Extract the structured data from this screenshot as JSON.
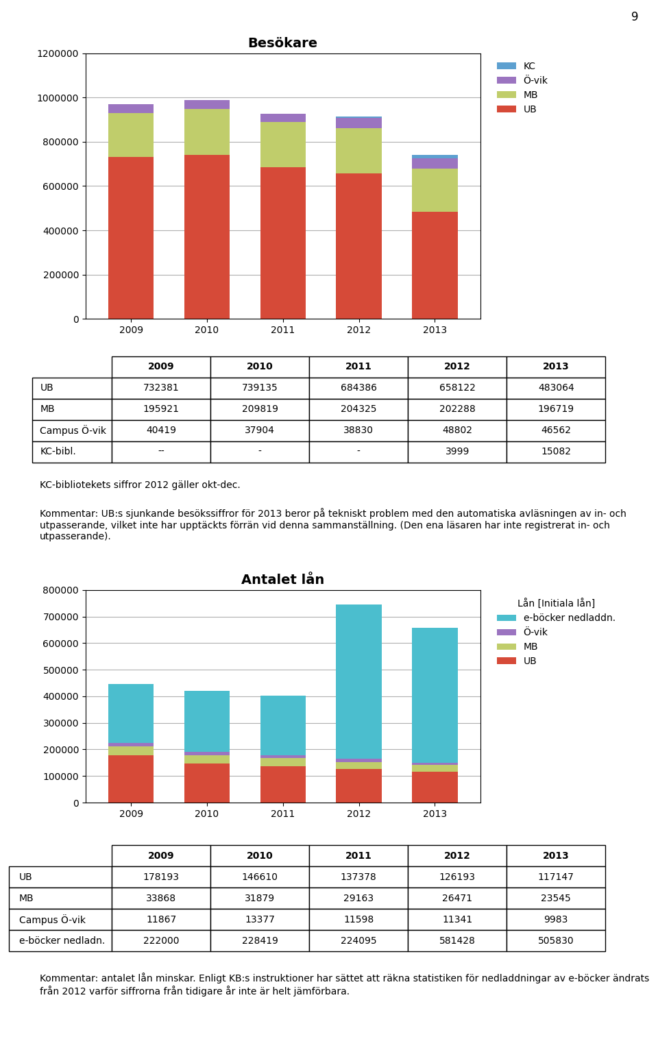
{
  "page_number": "9",
  "chart_data": [
    {
      "type": "bar",
      "stacked": true,
      "title": "Besökare",
      "categories": [
        "2009",
        "2010",
        "2011",
        "2012",
        "2013"
      ],
      "series": [
        {
          "name": "UB",
          "color": "#d64a38",
          "values": [
            732381,
            739135,
            684386,
            658122,
            483064
          ]
        },
        {
          "name": "MB",
          "color": "#c0cd6b",
          "values": [
            195921,
            209819,
            204325,
            202288,
            196719
          ]
        },
        {
          "name": "Ö-vik",
          "color": "#9b74c0",
          "values": [
            40419,
            37904,
            38830,
            48802,
            46562
          ]
        },
        {
          "name": "KC",
          "color": "#5da0d0",
          "values": [
            0,
            0,
            0,
            3999,
            15082
          ]
        }
      ],
      "ylim": [
        0,
        1200000
      ],
      "yticks": [
        0,
        200000,
        400000,
        600000,
        800000,
        1000000,
        1200000
      ],
      "grid": true,
      "legend": "upper left",
      "table": {
        "columns": [
          "2009",
          "2010",
          "2011",
          "2012",
          "2013"
        ],
        "rows": [
          {
            "label": "UB",
            "cells": [
              "732381",
              "739135",
              "684386",
              "658122",
              "483064"
            ]
          },
          {
            "label": "MB",
            "cells": [
              "195921",
              "209819",
              "204325",
              "202288",
              "196719"
            ]
          },
          {
            "label": "Campus Ö-vik",
            "cells": [
              "40419",
              "37904",
              "38830",
              "48802",
              "46562"
            ]
          },
          {
            "label": "KC-bibl.",
            "cells": [
              "--",
              "-",
              "-",
              "3999",
              "15082"
            ]
          }
        ]
      },
      "notes": [
        "KC-bibliotekets siffror 2012 gäller okt-dec.",
        "Kommentar: UB:s sjunkande besökssiffror för 2013 beror på tekniskt problem med den automatiska avläsningen av in- och utpasserande, vilket inte har upptäckts förrän vid denna sammanställning. (Den ena läsaren har inte registrerat in- och utpasserande)."
      ]
    },
    {
      "type": "bar",
      "stacked": true,
      "title": "Antalet lån",
      "legend_title": "Lån [Initiala lån]",
      "categories": [
        "2009",
        "2010",
        "2011",
        "2012",
        "2013"
      ],
      "series": [
        {
          "name": "UB",
          "color": "#d64a38",
          "values": [
            178193,
            146610,
            137378,
            126193,
            117147
          ]
        },
        {
          "name": "MB",
          "color": "#c0cd6b",
          "values": [
            33868,
            31879,
            29163,
            26471,
            23545
          ]
        },
        {
          "name": "Ö-vik",
          "color": "#9b74c0",
          "values": [
            11867,
            13377,
            11598,
            11341,
            9983
          ]
        },
        {
          "name": "e-böcker nedladdn.",
          "color": "#4bbece",
          "values": [
            222000,
            228419,
            224095,
            581428,
            505830
          ]
        }
      ],
      "ylim": [
        0,
        800000
      ],
      "yticks": [
        0,
        100000,
        200000,
        300000,
        400000,
        500000,
        600000,
        700000,
        800000
      ],
      "grid": true,
      "legend": "upper left",
      "table": {
        "columns": [
          "2009",
          "2010",
          "2011",
          "2012",
          "2013"
        ],
        "rows": [
          {
            "label": "UB",
            "cells": [
              "178193",
              "146610",
              "137378",
              "126193",
              "117147"
            ]
          },
          {
            "label": "MB",
            "cells": [
              "33868",
              "31879",
              "29163",
              "26471",
              "23545"
            ]
          },
          {
            "label": "Campus Ö-vik",
            "cells": [
              "11867",
              "13377",
              "11598",
              "11341",
              "9983"
            ]
          },
          {
            "label": "e-böcker nedladn.",
            "cells": [
              "222000",
              "228419",
              "224095",
              "581428",
              "505830"
            ]
          }
        ]
      },
      "notes": [
        "Kommentar: antalet lån minskar. Enligt KB:s instruktioner har sättet att räkna statistiken för nedladdningar av e-böcker ändrats från 2012 varför siffrorna från tidigare år inte är helt jämförbara."
      ]
    }
  ]
}
